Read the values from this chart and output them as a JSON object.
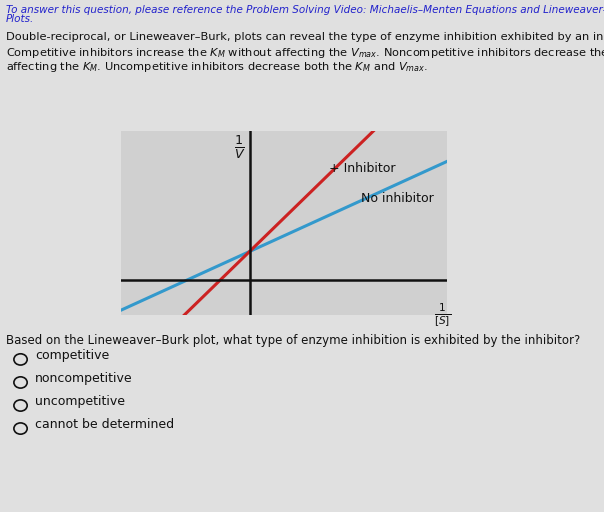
{
  "background_color": "#e0e0e0",
  "plot_bg_color": "#d0d0d0",
  "header_line1": "To answer this question, please reference the Problem Solving Video: Michaelis–Menten Equations and Lineweaver–Burk",
  "header_line2": "Plots.",
  "header_color": "#2222cc",
  "body_lines": [
    "Double-reciprocal, or Lineweaver–Burk, plots can reveal the type of enzyme inhibition exhibited by an inhibitor.",
    "Competitive inhibitors increase the $K_M$ without affecting the $V_{max}$. Noncompetitive inhibitors decrease the $V_{max}$ without",
    "affecting the $K_M$. Uncompetitive inhibitors decrease both the $K_M$ and $V_{max}$."
  ],
  "line_inhibitor_color": "#cc2222",
  "line_no_inhibitor_color": "#3399cc",
  "label_inhibitor": "+ Inhibitor",
  "label_no_inhibitor": "No inhibitor",
  "question": "Based on the Lineweaver–Burk plot, what type of enzyme inhibition is exhibited by the inhibitor?",
  "choices": [
    "competitive",
    "noncompetitive",
    "uncompetitive",
    "cannot be determined"
  ],
  "axis_color": "#111111",
  "text_color": "#111111",
  "y_intercept": 0.5,
  "slope_no_inh": 0.68,
  "slope_inh": 1.45,
  "x_min": -1.5,
  "x_max": 2.3,
  "y_min": -0.6,
  "y_max": 2.6
}
